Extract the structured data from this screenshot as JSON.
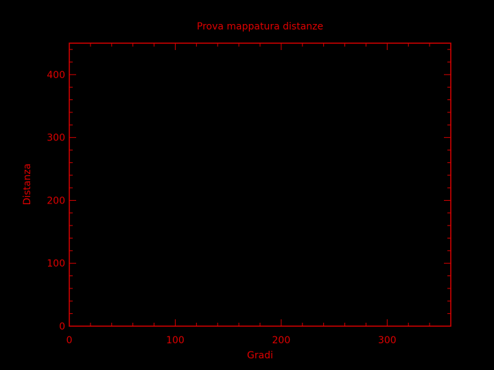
{
  "chart_data": {
    "type": "line",
    "title": "Prova mappatura distanze",
    "xlabel": "Gradi",
    "ylabel": "Distanza",
    "xlim": [
      0,
      360
    ],
    "ylim": [
      0,
      450
    ],
    "x_major_ticks": [
      0,
      100,
      200,
      300
    ],
    "x_tick_labels": [
      "0",
      "100",
      "200",
      "300"
    ],
    "y_major_ticks": [
      0,
      100,
      200,
      300,
      400
    ],
    "y_tick_labels": [
      "0",
      "100",
      "200",
      "300",
      "400"
    ],
    "x_minor_step": 20,
    "y_minor_step": 20,
    "grid": false,
    "series": [
      {
        "x": [],
        "y": []
      }
    ],
    "colors": {
      "background": "#000000",
      "axes": "#e00000",
      "text": "#e00000"
    }
  }
}
